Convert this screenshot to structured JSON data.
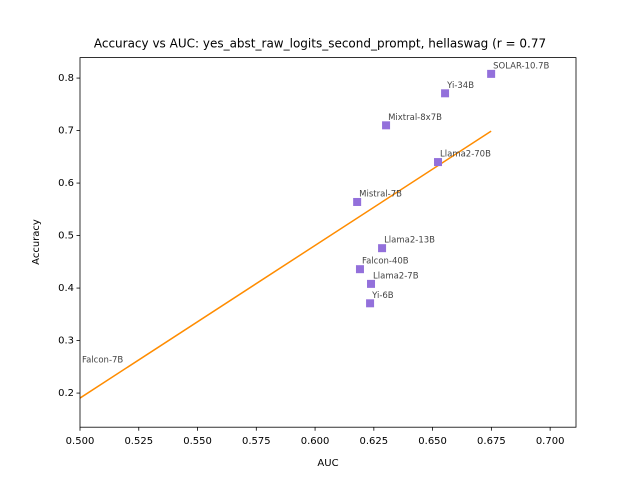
{
  "chart_data": {
    "type": "scatter",
    "title": "Accuracy vs AUC: yes_abst_raw_logits_second_prompt, hellaswag (r = 0.77",
    "x_label": "AUC",
    "y_label": "Accuracy",
    "labels": [
      "SOLAR-10.7B",
      "Yi-34B",
      "Mixtral-8x7B",
      "Llama2-70B",
      "Mistral-7B",
      "Llama2-13B",
      "Falcon-40B",
      "Llama2-7B",
      "Yi-6B",
      "Falcon-7B"
    ],
    "x": [
      0.6749,
      0.6553,
      0.6302,
      0.6523,
      0.6179,
      0.6285,
      0.6191,
      0.6238,
      0.6234,
      0.498
    ],
    "values": [
      0.808,
      0.771,
      0.71,
      0.64,
      0.564,
      0.476,
      0.436,
      0.408,
      0.371,
      0.248
    ],
    "color": "#9370db",
    "fit": {
      "x": [
        0.5,
        0.6749
      ],
      "y": [
        0.1905,
        0.699
      ],
      "color": "#ff8c00"
    },
    "xlim": [
      0.5,
      0.711
    ],
    "ylim": [
      0.135,
      0.839
    ],
    "xticks": [
      {
        "value": 0.5,
        "label": "0.500"
      },
      {
        "value": 0.525,
        "label": "0.525"
      },
      {
        "value": 0.55,
        "label": "0.550"
      },
      {
        "value": 0.575,
        "label": "0.575"
      },
      {
        "value": 0.6,
        "label": "0.600"
      },
      {
        "value": 0.625,
        "label": "0.625"
      },
      {
        "value": 0.65,
        "label": "0.650"
      },
      {
        "value": 0.675,
        "label": "0.675"
      },
      {
        "value": 0.7,
        "label": "0.700"
      }
    ],
    "yticks": [
      0.2,
      0.3,
      0.4,
      0.5,
      0.6,
      0.7,
      0.8
    ]
  }
}
